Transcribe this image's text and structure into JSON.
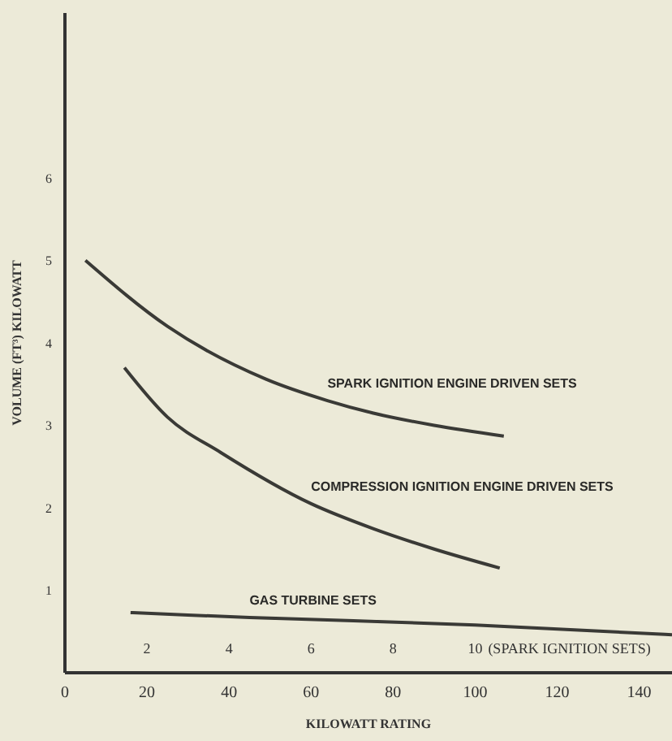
{
  "chart_data": {
    "type": "line",
    "xlabel": "KILOWATT RATING",
    "ylabel": "VOLUME (FT³) KILOWATT",
    "xlim": [
      0,
      148
    ],
    "xticks": [
      0,
      20,
      40,
      60,
      80,
      100,
      120,
      140
    ],
    "x2lim": [
      0,
      14.8
    ],
    "x2ticks": [
      2,
      4,
      6,
      8,
      10
    ],
    "x2label": "(SPARK IGNITION SETS)",
    "ylim": [
      0,
      8
    ],
    "yticks": [
      1,
      2,
      3,
      4,
      5,
      6
    ],
    "grid": false,
    "legend": false,
    "marker": "none",
    "line_style": "solid",
    "series": [
      {
        "name": "SPARK IGNITION ENGINE DRIVEN SETS",
        "color": "#3a3a36",
        "axis": "x2",
        "x": [
          0.5,
          2.5,
          4.9,
          6.4,
          7.5,
          9,
          10.7
        ],
        "values": [
          5.0,
          4.2,
          3.56,
          3.3,
          3.15,
          3.0,
          2.87
        ]
      },
      {
        "name": "COMPRESSION IGNITION ENGINE DRIVEN SETS",
        "color": "#3a3a36",
        "x": [
          14.5,
          25,
          38,
          60,
          75,
          90,
          106
        ],
        "values": [
          3.7,
          3.1,
          2.67,
          2.05,
          1.75,
          1.5,
          1.27
        ]
      },
      {
        "name": "GAS TURBINE SETS",
        "color": "#3a3a36",
        "x": [
          16,
          30,
          45,
          100,
          148
        ],
        "values": [
          0.73,
          0.7,
          0.67,
          0.58,
          0.46
        ]
      }
    ]
  }
}
